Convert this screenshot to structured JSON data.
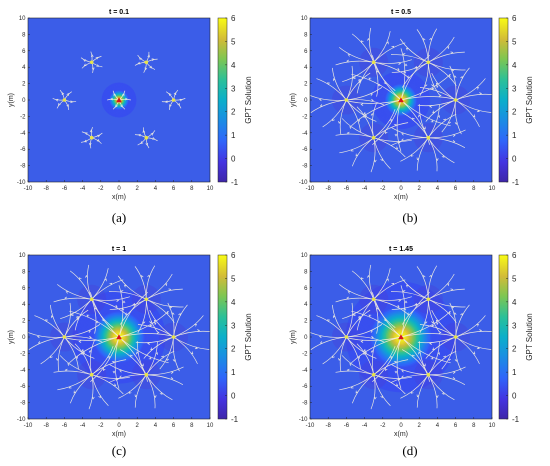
{
  "chart_data": [
    {
      "type": "heatmap",
      "panel_label": "(a)",
      "title": "t = 0.1",
      "xlabel": "x(m)",
      "ylabel": "y(m)",
      "xlim": [
        -10,
        10
      ],
      "ylim": [
        -10,
        10
      ],
      "xticks": [
        "-10",
        "-8",
        "-6",
        "-4",
        "-2",
        "0",
        "2",
        "4",
        "6",
        "8",
        "10"
      ],
      "yticks": [
        "-10",
        "-8",
        "-6",
        "-4",
        "-2",
        "0",
        "2",
        "4",
        "6",
        "8",
        "10"
      ],
      "colorbar_label": "GPT Solution",
      "colorbar_ticks": [
        "-1",
        "0",
        "1",
        "2",
        "3",
        "4",
        "5",
        "6"
      ],
      "clim": [
        -1,
        6
      ],
      "central_source": {
        "x": 0,
        "y": 0,
        "peak": 6,
        "spread": 0.6
      },
      "point_sources": [
        [
          3,
          4.6
        ],
        [
          -3,
          4.6
        ],
        [
          -6,
          0
        ],
        [
          6,
          0
        ],
        [
          -3,
          -4.6
        ],
        [
          3,
          -4.6
        ]
      ],
      "streamlines": "sparse"
    },
    {
      "type": "heatmap",
      "panel_label": "(b)",
      "title": "t = 0.5",
      "xlabel": "x(m)",
      "ylabel": "y(m)",
      "xlim": [
        -10,
        10
      ],
      "ylim": [
        -10,
        10
      ],
      "xticks": [
        "-10",
        "-8",
        "-6",
        "-4",
        "-2",
        "0",
        "2",
        "4",
        "6",
        "8",
        "10"
      ],
      "yticks": [
        "-10",
        "-8",
        "-6",
        "-4",
        "-2",
        "0",
        "2",
        "4",
        "6",
        "8",
        "10"
      ],
      "colorbar_label": "GPT Solution",
      "colorbar_ticks": [
        "-1",
        "0",
        "1",
        "2",
        "3",
        "4",
        "5",
        "6"
      ],
      "clim": [
        -1,
        6
      ],
      "central_source": {
        "x": 0,
        "y": 0,
        "peak": 6,
        "spread": 1.0
      },
      "point_sources": [
        [
          3,
          4.6
        ],
        [
          -3,
          4.6
        ],
        [
          -6,
          0
        ],
        [
          6,
          0
        ],
        [
          -3,
          -4.6
        ],
        [
          3,
          -4.6
        ]
      ],
      "streamlines": "dense"
    },
    {
      "type": "heatmap",
      "panel_label": "(c)",
      "title": "t = 1",
      "xlabel": "x(m)",
      "ylabel": "y(m)",
      "xlim": [
        -10,
        10
      ],
      "ylim": [
        -10,
        10
      ],
      "xticks": [
        "-10",
        "-8",
        "-6",
        "-4",
        "-2",
        "0",
        "2",
        "4",
        "6",
        "8",
        "10"
      ],
      "yticks": [
        "-10",
        "-8",
        "-6",
        "-4",
        "-2",
        "0",
        "2",
        "4",
        "6",
        "8",
        "10"
      ],
      "colorbar_label": "GPT Solution",
      "colorbar_ticks": [
        "-1",
        "0",
        "1",
        "2",
        "3",
        "4",
        "5",
        "6"
      ],
      "clim": [
        -1,
        6
      ],
      "central_source": {
        "x": 0,
        "y": 0,
        "peak": 6,
        "spread": 1.6
      },
      "point_sources": [
        [
          3,
          4.6
        ],
        [
          -3,
          4.6
        ],
        [
          -6,
          0
        ],
        [
          6,
          0
        ],
        [
          -3,
          -4.6
        ],
        [
          3,
          -4.6
        ]
      ],
      "streamlines": "dense"
    },
    {
      "type": "heatmap",
      "panel_label": "(d)",
      "title": "t = 1.45",
      "xlabel": "x(m)",
      "ylabel": "y(m)",
      "xlim": [
        -10,
        10
      ],
      "ylim": [
        -10,
        10
      ],
      "xticks": [
        "-10",
        "-8",
        "-6",
        "-4",
        "-2",
        "0",
        "2",
        "4",
        "6",
        "8",
        "10"
      ],
      "yticks": [
        "-10",
        "-8",
        "-6",
        "-4",
        "-2",
        "0",
        "2",
        "4",
        "6",
        "8",
        "10"
      ],
      "colorbar_label": "GPT Solution",
      "colorbar_ticks": [
        "-1",
        "0",
        "1",
        "2",
        "3",
        "4",
        "5",
        "6"
      ],
      "clim": [
        -1,
        6
      ],
      "central_source": {
        "x": 0,
        "y": 0,
        "peak": 6,
        "spread": 1.9
      },
      "point_sources": [
        [
          3,
          4.6
        ],
        [
          -3,
          4.6
        ],
        [
          -6,
          0
        ],
        [
          6,
          0
        ],
        [
          -3,
          -4.6
        ],
        [
          3,
          -4.6
        ]
      ],
      "streamlines": "dense"
    }
  ],
  "colors": {
    "background_field": "#3b5de8",
    "streamline": "#f2eee0",
    "source_marker": "#e8e34a",
    "central_marker": "#d6151c"
  }
}
